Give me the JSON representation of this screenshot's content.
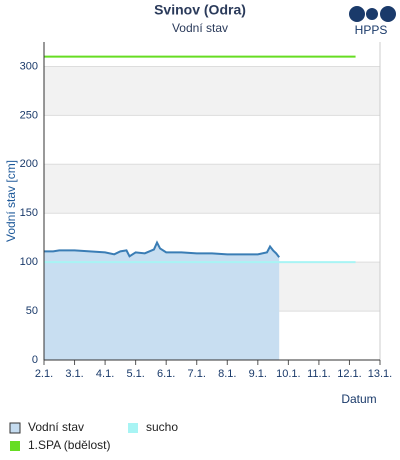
{
  "logo_text": "HPPS",
  "chart_data": {
    "type": "line",
    "title": "Svinov (Odra)",
    "subtitle": "Vodní stav",
    "y_label": "Vodní stav [cm]",
    "x_label": "Datum",
    "xlim": [
      2,
      13
    ],
    "ylim": [
      0,
      325
    ],
    "xticks": [
      {
        "value": 2,
        "label": "2.1."
      },
      {
        "value": 3,
        "label": "3.1."
      },
      {
        "value": 4,
        "label": "4.1."
      },
      {
        "value": 5,
        "label": "5.1."
      },
      {
        "value": 6,
        "label": "6.1."
      },
      {
        "value": 7,
        "label": "7.1."
      },
      {
        "value": 8,
        "label": "8.1."
      },
      {
        "value": 9,
        "label": "9.1."
      },
      {
        "value": 10,
        "label": "10.1."
      },
      {
        "value": 11,
        "label": "11.1."
      },
      {
        "value": 12,
        "label": "12.1."
      },
      {
        "value": 13,
        "label": "13.1."
      }
    ],
    "yticks": [
      0,
      50,
      100,
      150,
      200,
      250,
      300
    ],
    "grid": true,
    "series": [
      {
        "name": "Vodní stav",
        "color": "#3a7db5",
        "fill": "#c5dcf0",
        "x": [
          2.0,
          2.3,
          2.5,
          3.0,
          3.5,
          4.0,
          4.3,
          4.5,
          4.7,
          4.8,
          5.0,
          5.3,
          5.6,
          5.7,
          5.8,
          6.0,
          6.5,
          7.0,
          7.5,
          8.0,
          8.5,
          9.0,
          9.3,
          9.4,
          9.5,
          9.6,
          9.7
        ],
        "values": [
          111,
          111,
          112,
          112,
          111,
          110,
          108,
          111,
          112,
          106,
          110,
          109,
          113,
          120,
          114,
          110,
          110,
          109,
          109,
          108,
          108,
          108,
          110,
          116,
          112,
          109,
          105
        ]
      },
      {
        "name": "sucho",
        "color": "#a8f4f4",
        "x": [
          2,
          12.2
        ],
        "values": [
          100,
          100
        ]
      },
      {
        "name": "1.SPA (bdělost)",
        "color": "#66dd22",
        "x": [
          2,
          12.2
        ],
        "values": [
          310,
          310
        ]
      }
    ]
  }
}
